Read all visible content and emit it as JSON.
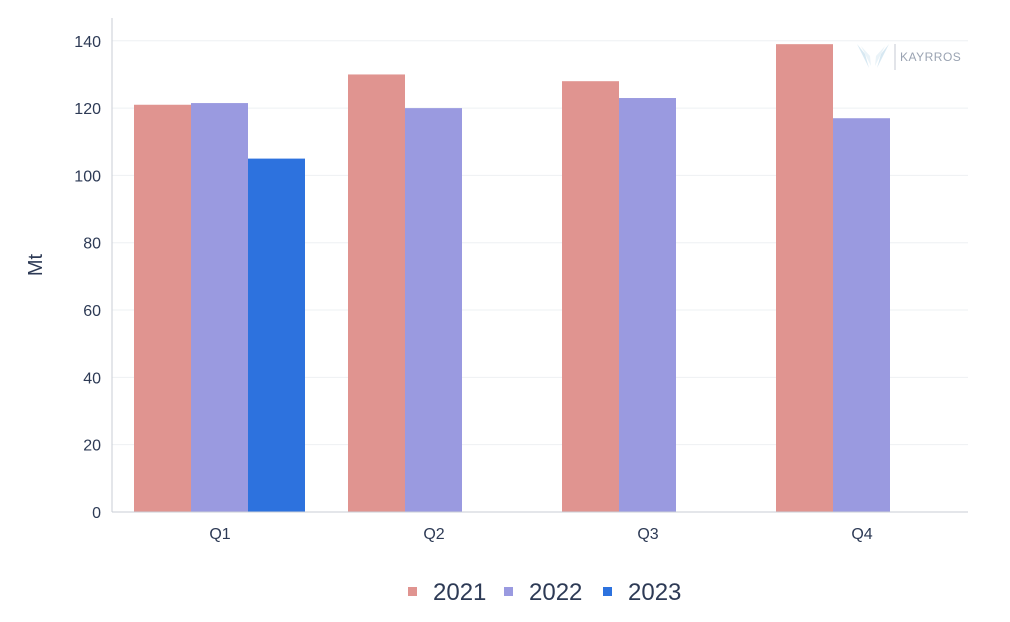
{
  "chart_data": {
    "type": "bar",
    "categories": [
      "Q1",
      "Q2",
      "Q3",
      "Q4"
    ],
    "series": [
      {
        "name": "2021",
        "values": [
          121,
          130,
          128,
          139
        ]
      },
      {
        "name": "2022",
        "values": [
          121.5,
          120,
          123,
          117
        ]
      },
      {
        "name": "2023",
        "values": [
          105,
          null,
          null,
          null
        ]
      }
    ],
    "colors": [
      "#e09490",
      "#9a9ae0",
      "#2d72de"
    ],
    "ylabel": "Mt",
    "xlabel": "",
    "ylim": [
      0,
      145
    ],
    "yticks": [
      0,
      20,
      40,
      60,
      80,
      100,
      120,
      140
    ],
    "grid": true,
    "legend": "bottom-center"
  },
  "logo": {
    "text": "KAYRROS",
    "icon": "wing-icon"
  }
}
